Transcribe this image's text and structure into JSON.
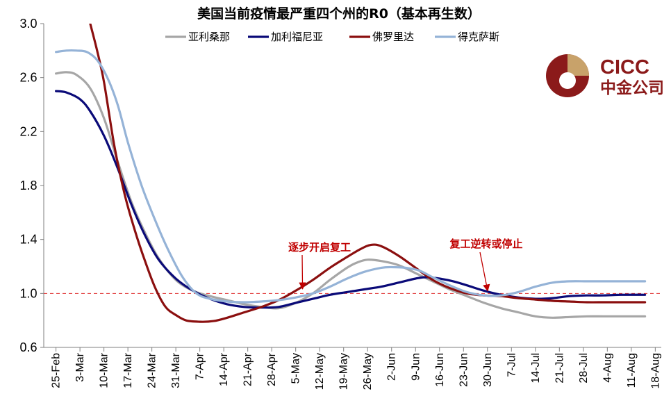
{
  "chart_data": {
    "type": "line",
    "title": "美国当前疫情最严重四个州的R0（基本再生数）",
    "xlabel": "",
    "ylabel": "",
    "ylim": [
      0.6,
      3.0
    ],
    "yticks": [
      "0.6",
      "1.0",
      "1.4",
      "1.8",
      "2.2",
      "2.6",
      "3.0"
    ],
    "xticks": [
      "25-Feb",
      "3-Mar",
      "10-Mar",
      "17-Mar",
      "24-Mar",
      "31-Mar",
      "7-Apr",
      "14-Apr",
      "21-Apr",
      "28-Apr",
      "5-May",
      "12-May",
      "19-May",
      "26-May",
      "2-Jun",
      "9-Jun",
      "16-Jun",
      "23-Jun",
      "30-Jun",
      "7-Jul",
      "14-Jul",
      "21-Jul",
      "28-Jul",
      "4-Aug",
      "11-Aug",
      "18-Aug"
    ],
    "legend_position": "top",
    "reference_line": {
      "y": 1.0,
      "color": "#e03030",
      "style": "dashed"
    },
    "series": [
      {
        "name": "亚利桑那",
        "color": "#a6a6a6",
        "points": [
          [
            0,
            2.63
          ],
          [
            3,
            2.64
          ],
          [
            6,
            2.62
          ],
          [
            10,
            2.52
          ],
          [
            14,
            2.3
          ],
          [
            18,
            1.98
          ],
          [
            22,
            1.68
          ],
          [
            26,
            1.45
          ],
          [
            30,
            1.26
          ],
          [
            35,
            1.1
          ],
          [
            40,
            1.02
          ],
          [
            45,
            0.98
          ],
          [
            50,
            0.95
          ],
          [
            55,
            0.92
          ],
          [
            60,
            0.9
          ],
          [
            65,
            0.89
          ],
          [
            70,
            0.93
          ],
          [
            75,
            1.0
          ],
          [
            80,
            1.1
          ],
          [
            85,
            1.19
          ],
          [
            88,
            1.23
          ],
          [
            91,
            1.25
          ],
          [
            95,
            1.24
          ],
          [
            100,
            1.21
          ],
          [
            105,
            1.15
          ],
          [
            110,
            1.09
          ],
          [
            115,
            1.03
          ],
          [
            120,
            0.98
          ],
          [
            125,
            0.93
          ],
          [
            130,
            0.89
          ],
          [
            135,
            0.86
          ],
          [
            140,
            0.83
          ],
          [
            145,
            0.82
          ],
          [
            150,
            0.825
          ],
          [
            155,
            0.83
          ],
          [
            160,
            0.83
          ],
          [
            165,
            0.83
          ],
          [
            172,
            0.83
          ]
        ]
      },
      {
        "name": "加利福尼亚",
        "color": "#0a0a78",
        "points": [
          [
            0,
            2.5
          ],
          [
            3,
            2.49
          ],
          [
            7,
            2.44
          ],
          [
            10,
            2.35
          ],
          [
            14,
            2.17
          ],
          [
            18,
            1.93
          ],
          [
            22,
            1.66
          ],
          [
            26,
            1.43
          ],
          [
            30,
            1.25
          ],
          [
            35,
            1.11
          ],
          [
            40,
            1.02
          ],
          [
            45,
            0.96
          ],
          [
            50,
            0.92
          ],
          [
            55,
            0.9
          ],
          [
            60,
            0.895
          ],
          [
            65,
            0.9
          ],
          [
            70,
            0.93
          ],
          [
            75,
            0.96
          ],
          [
            80,
            0.99
          ],
          [
            85,
            1.01
          ],
          [
            90,
            1.03
          ],
          [
            95,
            1.05
          ],
          [
            100,
            1.08
          ],
          [
            105,
            1.11
          ],
          [
            108,
            1.12
          ],
          [
            112,
            1.11
          ],
          [
            116,
            1.09
          ],
          [
            120,
            1.06
          ],
          [
            125,
            1.02
          ],
          [
            130,
            0.99
          ],
          [
            135,
            0.97
          ],
          [
            140,
            0.96
          ],
          [
            145,
            0.965
          ],
          [
            150,
            0.98
          ],
          [
            155,
            0.985
          ],
          [
            160,
            0.985
          ],
          [
            165,
            0.99
          ],
          [
            172,
            0.99
          ]
        ]
      },
      {
        "name": "佛罗里达",
        "color": "#8b0f0f",
        "points": [
          [
            10,
            3.0
          ],
          [
            12,
            2.8
          ],
          [
            14,
            2.57
          ],
          [
            17,
            2.1
          ],
          [
            20,
            1.74
          ],
          [
            23,
            1.47
          ],
          [
            26,
            1.24
          ],
          [
            29,
            1.04
          ],
          [
            32,
            0.9
          ],
          [
            35,
            0.84
          ],
          [
            38,
            0.8
          ],
          [
            42,
            0.79
          ],
          [
            46,
            0.795
          ],
          [
            50,
            0.82
          ],
          [
            55,
            0.86
          ],
          [
            60,
            0.9
          ],
          [
            65,
            0.95
          ],
          [
            70,
            1.02
          ],
          [
            75,
            1.1
          ],
          [
            80,
            1.19
          ],
          [
            85,
            1.27
          ],
          [
            89,
            1.33
          ],
          [
            92,
            1.36
          ],
          [
            95,
            1.35
          ],
          [
            100,
            1.28
          ],
          [
            105,
            1.19
          ],
          [
            110,
            1.1
          ],
          [
            115,
            1.04
          ],
          [
            120,
            1.0
          ],
          [
            125,
            0.985
          ],
          [
            130,
            0.98
          ],
          [
            135,
            0.965
          ],
          [
            140,
            0.955
          ],
          [
            145,
            0.945
          ],
          [
            150,
            0.94
          ],
          [
            155,
            0.935
          ],
          [
            160,
            0.935
          ],
          [
            165,
            0.935
          ],
          [
            172,
            0.935
          ]
        ]
      },
      {
        "name": "得克萨斯",
        "color": "#95b3d7",
        "points": [
          [
            0,
            2.79
          ],
          [
            3,
            2.8
          ],
          [
            6,
            2.8
          ],
          [
            9,
            2.79
          ],
          [
            12,
            2.73
          ],
          [
            15,
            2.6
          ],
          [
            18,
            2.4
          ],
          [
            21,
            2.12
          ],
          [
            25,
            1.8
          ],
          [
            29,
            1.54
          ],
          [
            33,
            1.31
          ],
          [
            37,
            1.12
          ],
          [
            41,
            1.0
          ],
          [
            45,
            0.96
          ],
          [
            50,
            0.94
          ],
          [
            55,
            0.935
          ],
          [
            60,
            0.94
          ],
          [
            65,
            0.95
          ],
          [
            70,
            0.97
          ],
          [
            75,
            1.0
          ],
          [
            80,
            1.05
          ],
          [
            85,
            1.11
          ],
          [
            90,
            1.16
          ],
          [
            95,
            1.19
          ],
          [
            98,
            1.195
          ],
          [
            102,
            1.19
          ],
          [
            106,
            1.17
          ],
          [
            110,
            1.12
          ],
          [
            115,
            1.06
          ],
          [
            120,
            1.01
          ],
          [
            125,
            0.985
          ],
          [
            130,
            0.985
          ],
          [
            135,
            1.01
          ],
          [
            140,
            1.05
          ],
          [
            145,
            1.08
          ],
          [
            150,
            1.09
          ],
          [
            155,
            1.09
          ],
          [
            160,
            1.09
          ],
          [
            165,
            1.09
          ],
          [
            172,
            1.09
          ]
        ]
      }
    ],
    "annotations": [
      {
        "text": "逐步开启复工",
        "point_to": [
          72,
          1.0
        ]
      },
      {
        "text": "复工逆转或停止",
        "point_to": [
          126,
          0.985
        ]
      }
    ]
  },
  "logo": {
    "latin": "CICC",
    "cjk": "中金公司"
  }
}
